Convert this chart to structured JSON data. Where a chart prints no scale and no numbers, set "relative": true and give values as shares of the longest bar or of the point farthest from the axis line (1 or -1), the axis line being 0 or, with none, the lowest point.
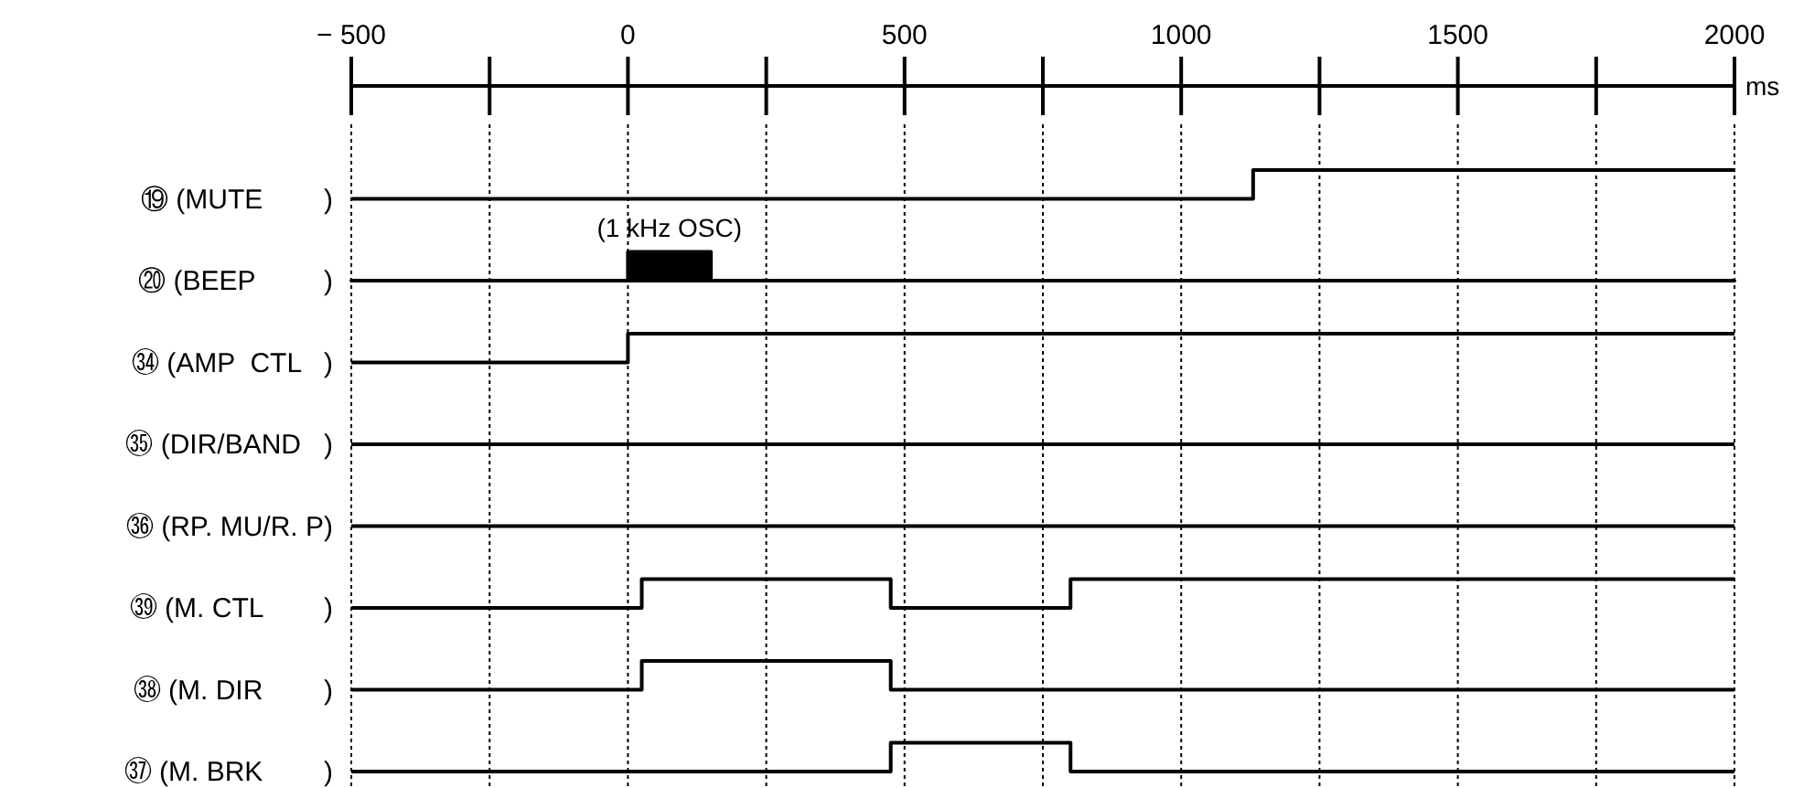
{
  "chart_data": {
    "type": "step",
    "relative": true,
    "xlabel": "ms",
    "xlim": [
      -500,
      2000
    ],
    "xticks": [
      {
        "value": -500,
        "label": "− 500"
      },
      {
        "value": -250,
        "label": null
      },
      0,
      {
        "value": 250,
        "label": null
      },
      500,
      {
        "value": 750,
        "label": null
      },
      1000,
      {
        "value": 1250,
        "label": null
      },
      1500,
      {
        "value": 1750,
        "label": null
      },
      2000
    ],
    "tick_labels": "x",
    "grid": "x",
    "annotations": [
      "(1 kHz OSC)"
    ],
    "series": [
      {
        "name": "⑲ (MUTE        )",
        "color": "#000000",
        "x": [
          -500,
          1130,
          2000
        ],
        "values": [
          0.952,
          1,
          1
        ]
      },
      {
        "name": "⑳ (BEEP         )",
        "color": "#000000",
        "type": "area",
        "x": [
          -500,
          0,
          150,
          2000
        ],
        "values": [
          0.816,
          0.864,
          0.816,
          0.816
        ]
      },
      {
        "name": "㉞ (AMP  CTL   )",
        "color": "#000000",
        "x": [
          -500,
          0,
          2000
        ],
        "values": [
          0.68,
          0.728,
          0.728
        ]
      },
      {
        "name": "㉟ (DIR/BAND   )",
        "color": "#000000",
        "x": [
          -500,
          2000
        ],
        "values": [
          0.544,
          0.544
        ]
      },
      {
        "name": "㊱ (RP. MU/R. P)",
        "color": "#000000",
        "x": [
          -500,
          2000
        ],
        "values": [
          0.408,
          0.408
        ]
      },
      {
        "name": "㊴ (M. CTL        )",
        "color": "#000000",
        "x": [
          -500,
          25,
          475,
          800,
          2000
        ],
        "values": [
          0.272,
          0.32,
          0.272,
          0.32,
          0.32
        ]
      },
      {
        "name": "㊳ (M. DIR        )",
        "color": "#000000",
        "x": [
          -500,
          25,
          475,
          2000
        ],
        "values": [
          0.136,
          0.184,
          0.136,
          0.136
        ]
      },
      {
        "name": "㊲ (M. BRK        )",
        "color": "#000000",
        "x": [
          -500,
          475,
          800,
          2000
        ],
        "values": [
          0,
          0.048,
          0,
          0
        ]
      }
    ]
  }
}
